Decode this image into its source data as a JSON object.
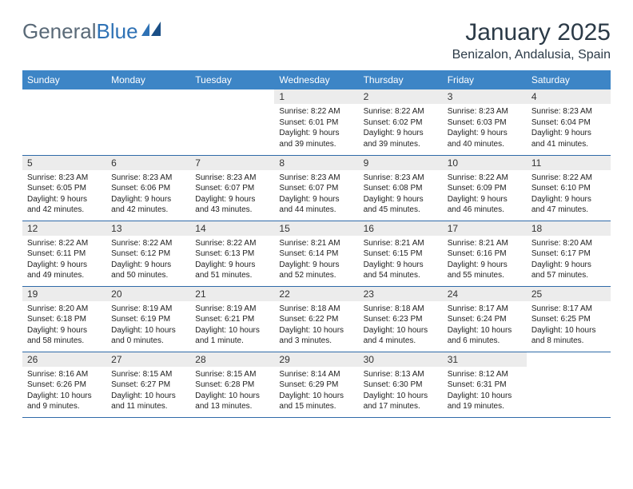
{
  "logo": {
    "part1": "General",
    "part2": "Blue"
  },
  "month_title": "January 2025",
  "location": "Benizalon, Andalusia, Spain",
  "colors": {
    "header_bg": "#3d85c6",
    "header_text": "#ffffff",
    "daynum_bg": "#ececec",
    "border": "#2f6aa8",
    "logo_gray": "#5a6a78",
    "logo_blue": "#2f72b5"
  },
  "weekdays": [
    "Sunday",
    "Monday",
    "Tuesday",
    "Wednesday",
    "Thursday",
    "Friday",
    "Saturday"
  ],
  "weeks": [
    [
      null,
      null,
      null,
      {
        "d": "1",
        "sr": "8:22 AM",
        "ss": "6:01 PM",
        "dl": "9 hours and 39 minutes."
      },
      {
        "d": "2",
        "sr": "8:22 AM",
        "ss": "6:02 PM",
        "dl": "9 hours and 39 minutes."
      },
      {
        "d": "3",
        "sr": "8:23 AM",
        "ss": "6:03 PM",
        "dl": "9 hours and 40 minutes."
      },
      {
        "d": "4",
        "sr": "8:23 AM",
        "ss": "6:04 PM",
        "dl": "9 hours and 41 minutes."
      }
    ],
    [
      {
        "d": "5",
        "sr": "8:23 AM",
        "ss": "6:05 PM",
        "dl": "9 hours and 42 minutes."
      },
      {
        "d": "6",
        "sr": "8:23 AM",
        "ss": "6:06 PM",
        "dl": "9 hours and 42 minutes."
      },
      {
        "d": "7",
        "sr": "8:23 AM",
        "ss": "6:07 PM",
        "dl": "9 hours and 43 minutes."
      },
      {
        "d": "8",
        "sr": "8:23 AM",
        "ss": "6:07 PM",
        "dl": "9 hours and 44 minutes."
      },
      {
        "d": "9",
        "sr": "8:23 AM",
        "ss": "6:08 PM",
        "dl": "9 hours and 45 minutes."
      },
      {
        "d": "10",
        "sr": "8:22 AM",
        "ss": "6:09 PM",
        "dl": "9 hours and 46 minutes."
      },
      {
        "d": "11",
        "sr": "8:22 AM",
        "ss": "6:10 PM",
        "dl": "9 hours and 47 minutes."
      }
    ],
    [
      {
        "d": "12",
        "sr": "8:22 AM",
        "ss": "6:11 PM",
        "dl": "9 hours and 49 minutes."
      },
      {
        "d": "13",
        "sr": "8:22 AM",
        "ss": "6:12 PM",
        "dl": "9 hours and 50 minutes."
      },
      {
        "d": "14",
        "sr": "8:22 AM",
        "ss": "6:13 PM",
        "dl": "9 hours and 51 minutes."
      },
      {
        "d": "15",
        "sr": "8:21 AM",
        "ss": "6:14 PM",
        "dl": "9 hours and 52 minutes."
      },
      {
        "d": "16",
        "sr": "8:21 AM",
        "ss": "6:15 PM",
        "dl": "9 hours and 54 minutes."
      },
      {
        "d": "17",
        "sr": "8:21 AM",
        "ss": "6:16 PM",
        "dl": "9 hours and 55 minutes."
      },
      {
        "d": "18",
        "sr": "8:20 AM",
        "ss": "6:17 PM",
        "dl": "9 hours and 57 minutes."
      }
    ],
    [
      {
        "d": "19",
        "sr": "8:20 AM",
        "ss": "6:18 PM",
        "dl": "9 hours and 58 minutes."
      },
      {
        "d": "20",
        "sr": "8:19 AM",
        "ss": "6:19 PM",
        "dl": "10 hours and 0 minutes."
      },
      {
        "d": "21",
        "sr": "8:19 AM",
        "ss": "6:21 PM",
        "dl": "10 hours and 1 minute."
      },
      {
        "d": "22",
        "sr": "8:18 AM",
        "ss": "6:22 PM",
        "dl": "10 hours and 3 minutes."
      },
      {
        "d": "23",
        "sr": "8:18 AM",
        "ss": "6:23 PM",
        "dl": "10 hours and 4 minutes."
      },
      {
        "d": "24",
        "sr": "8:17 AM",
        "ss": "6:24 PM",
        "dl": "10 hours and 6 minutes."
      },
      {
        "d": "25",
        "sr": "8:17 AM",
        "ss": "6:25 PM",
        "dl": "10 hours and 8 minutes."
      }
    ],
    [
      {
        "d": "26",
        "sr": "8:16 AM",
        "ss": "6:26 PM",
        "dl": "10 hours and 9 minutes."
      },
      {
        "d": "27",
        "sr": "8:15 AM",
        "ss": "6:27 PM",
        "dl": "10 hours and 11 minutes."
      },
      {
        "d": "28",
        "sr": "8:15 AM",
        "ss": "6:28 PM",
        "dl": "10 hours and 13 minutes."
      },
      {
        "d": "29",
        "sr": "8:14 AM",
        "ss": "6:29 PM",
        "dl": "10 hours and 15 minutes."
      },
      {
        "d": "30",
        "sr": "8:13 AM",
        "ss": "6:30 PM",
        "dl": "10 hours and 17 minutes."
      },
      {
        "d": "31",
        "sr": "8:12 AM",
        "ss": "6:31 PM",
        "dl": "10 hours and 19 minutes."
      },
      null
    ]
  ],
  "labels": {
    "sunrise": "Sunrise:",
    "sunset": "Sunset:",
    "daylight": "Daylight:"
  }
}
